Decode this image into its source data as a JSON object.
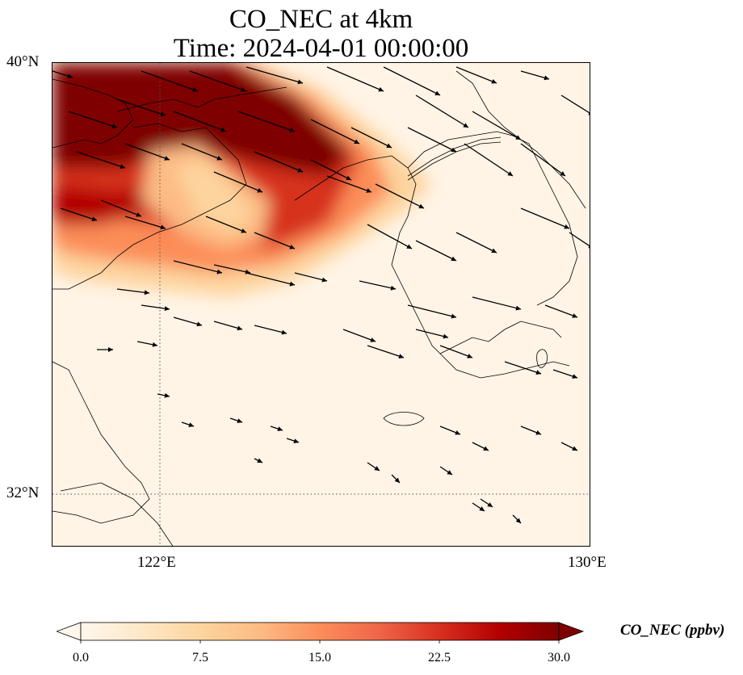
{
  "title_line1": "CO_NEC at 4km",
  "title_line2": "Time: 2024-04-01 00:00:00",
  "lat_labels": [
    "40°N",
    "32°N"
  ],
  "lon_labels": [
    "122°E",
    "130°E"
  ],
  "extent": {
    "lon": [
      120,
      130
    ],
    "lat": [
      31,
      40
    ]
  },
  "gridlines": {
    "lon": [
      122
    ],
    "lat": [
      32
    ],
    "style": "dotted"
  },
  "colorbar": {
    "label": "CO_NEC (ppbv)",
    "ticks": [
      "0.0",
      "7.5",
      "15.0",
      "22.5",
      "30.0"
    ],
    "range": [
      0,
      30
    ],
    "colormap": "OrRd",
    "extend": "both",
    "colors": [
      "#fff7ec",
      "#fee8c8",
      "#fdd49e",
      "#fdbb84",
      "#fc8d59",
      "#ef6548",
      "#d7301f",
      "#b30000",
      "#7f0000"
    ]
  },
  "features": [
    "coastlines",
    "wind-vectors"
  ]
}
